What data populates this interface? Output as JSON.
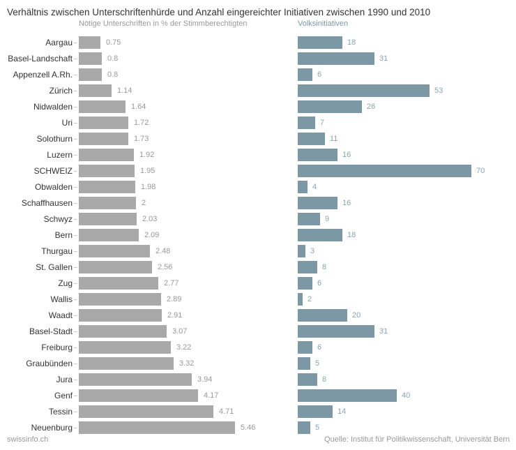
{
  "title": "Verhältnis zwischen Unterschriftenhürde und Anzahl eingereichter Initiativen zwischen 1990 und 2010",
  "left_header": "Nötige Unterschriften in % der Stimmberechtigten",
  "right_header": "Volksinitiativen",
  "footer": {
    "left": "swissinfo.ch",
    "right": "Quelle: Institut für Politikwissenschaft, Universität Bern"
  },
  "colors": {
    "gray_bar": "#a9a9a9",
    "blue_bar": "#7c98a5",
    "value_gray": "#999999",
    "value_blue": "#8aa4b0",
    "label": "#333333",
    "tick": "#c8c8c8",
    "header_gray": "#999999",
    "header_blue": "#7c98a5",
    "title": "#333333",
    "footer": "#999999"
  },
  "chart_data": {
    "type": "bar",
    "orientation": "horizontal",
    "title": "Verhältnis zwischen Unterschriftenhürde und Anzahl eingereichter Initiativen zwischen 1990 und 2010",
    "categories": [
      "Aargau",
      "Basel-Landschaft",
      "Appenzell A.Rh.",
      "Zürich",
      "Nidwalden",
      "Uri",
      "Solothurn",
      "Luzern",
      "SCHWEIZ",
      "Obwalden",
      "Schaffhausen",
      "Schwyz",
      "Bern",
      "Thurgau",
      "St. Gallen",
      "Zug",
      "Wallis",
      "Waadt",
      "Basel-Stadt",
      "Freiburg",
      "Graubünden",
      "Jura",
      "Genf",
      "Tessin",
      "Neuenburg"
    ],
    "series": [
      {
        "name": "Nötige Unterschriften in % der Stimmberechtigten",
        "values": [
          0.75,
          0.8,
          0.8,
          1.14,
          1.64,
          1.72,
          1.73,
          1.92,
          1.95,
          1.98,
          2,
          2.03,
          2.09,
          2.48,
          2.56,
          2.77,
          2.89,
          2.91,
          3.07,
          3.22,
          3.32,
          3.94,
          4.17,
          4.71,
          5.46
        ],
        "xlim": [
          0,
          7.5
        ]
      },
      {
        "name": "Volksinitiativen",
        "values": [
          18,
          31,
          6,
          53,
          26,
          7,
          11,
          16,
          70,
          4,
          16,
          9,
          18,
          3,
          8,
          6,
          2,
          20,
          31,
          6,
          5,
          8,
          40,
          14,
          5
        ],
        "xlim": [
          0,
          88
        ]
      }
    ],
    "grid": false,
    "legend": "column-headers-above",
    "value_labels": "end-of-bar"
  }
}
